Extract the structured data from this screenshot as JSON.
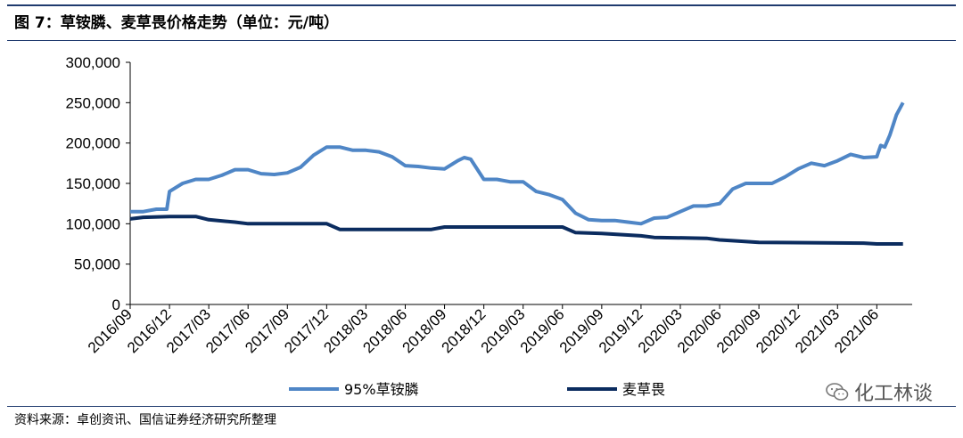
{
  "figure": {
    "title": "图 7：草铵膦、麦草畏价格走势（单位：元/吨）",
    "source": "资料来源：卓创资讯、国信证券经济研究所整理",
    "watermark": "化工林谈",
    "watermark_icon": "wechat-icon"
  },
  "chart_data": {
    "type": "line",
    "title": "",
    "xlabel": "",
    "ylabel": "",
    "ylim": [
      0,
      300000
    ],
    "yticks": [
      0,
      50000,
      100000,
      150000,
      200000,
      250000,
      300000
    ],
    "ytick_labels": [
      "0",
      "50,000",
      "100,000",
      "150,000",
      "200,000",
      "250,000",
      "300,000"
    ],
    "xticks": [
      "2016/09",
      "2016/12",
      "2017/03",
      "2017/06",
      "2017/09",
      "2017/12",
      "2018/03",
      "2018/06",
      "2018/09",
      "2018/12",
      "2019/03",
      "2019/06",
      "2019/09",
      "2019/12",
      "2020/03",
      "2020/06",
      "2020/09",
      "2020/12",
      "2021/03",
      "2021/06"
    ],
    "grid": false,
    "legend_position": "bottom",
    "series": [
      {
        "name": "95%草铵膦",
        "color": "#4f86c6",
        "points": [
          [
            "2016/09",
            115000
          ],
          [
            "2016/10",
            115000
          ],
          [
            "2016/11",
            118000
          ],
          [
            "2016/11.8",
            118000
          ],
          [
            "2016/12",
            140000
          ],
          [
            "2017/01",
            150000
          ],
          [
            "2017/02",
            155000
          ],
          [
            "2017/03",
            155000
          ],
          [
            "2017/04",
            160000
          ],
          [
            "2017/05",
            167000
          ],
          [
            "2017/06",
            167000
          ],
          [
            "2017/07",
            162000
          ],
          [
            "2017/08",
            161000
          ],
          [
            "2017/09",
            163000
          ],
          [
            "2017/10",
            170000
          ],
          [
            "2017/11",
            185000
          ],
          [
            "2017/12",
            195000
          ],
          [
            "2018/01",
            195000
          ],
          [
            "2018/02",
            191000
          ],
          [
            "2018/03",
            191000
          ],
          [
            "2018/04",
            189000
          ],
          [
            "2018/05",
            183000
          ],
          [
            "2018/06",
            172000
          ],
          [
            "2018/07",
            171000
          ],
          [
            "2018/08",
            169000
          ],
          [
            "2018/09",
            168000
          ],
          [
            "2018/10",
            178000
          ],
          [
            "2018/10.5",
            182000
          ],
          [
            "2018/11",
            180000
          ],
          [
            "2018/12",
            155000
          ],
          [
            "2019/01",
            155000
          ],
          [
            "2019/02",
            152000
          ],
          [
            "2019/03",
            152000
          ],
          [
            "2019/04",
            140000
          ],
          [
            "2019/05",
            136000
          ],
          [
            "2019/06",
            130000
          ],
          [
            "2019/07",
            113000
          ],
          [
            "2019/08",
            105000
          ],
          [
            "2019/09",
            104000
          ],
          [
            "2019/10",
            104000
          ],
          [
            "2019/11",
            102000
          ],
          [
            "2019/12",
            100000
          ],
          [
            "2020/01",
            107000
          ],
          [
            "2020/02",
            108000
          ],
          [
            "2020/03",
            115000
          ],
          [
            "2020/04",
            122000
          ],
          [
            "2020/05",
            122000
          ],
          [
            "2020/06",
            125000
          ],
          [
            "2020/07",
            143000
          ],
          [
            "2020/08",
            150000
          ],
          [
            "2020/09",
            150000
          ],
          [
            "2020/10",
            150000
          ],
          [
            "2020/11",
            158000
          ],
          [
            "2020/12",
            168000
          ],
          [
            "2021/01",
            175000
          ],
          [
            "2021/02",
            172000
          ],
          [
            "2021/03",
            178000
          ],
          [
            "2021/04",
            186000
          ],
          [
            "2021/05",
            182000
          ],
          [
            "2021/06",
            183000
          ],
          [
            "2021/06.3",
            197000
          ],
          [
            "2021/06.6",
            195000
          ],
          [
            "2021/07",
            210000
          ],
          [
            "2021/07.5",
            235000
          ],
          [
            "2021/08",
            250000
          ]
        ]
      },
      {
        "name": "麦草畏",
        "color": "#0b2c5f",
        "points": [
          [
            "2016/09",
            106000
          ],
          [
            "2016/10",
            108000
          ],
          [
            "2016/12",
            109000
          ],
          [
            "2017/02",
            109000
          ],
          [
            "2017/03",
            105000
          ],
          [
            "2017/05",
            102000
          ],
          [
            "2017/06",
            100000
          ],
          [
            "2017/12",
            100000
          ],
          [
            "2018/01",
            93000
          ],
          [
            "2018/08",
            93000
          ],
          [
            "2018/09",
            96000
          ],
          [
            "2019/06",
            96000
          ],
          [
            "2019/07",
            89000
          ],
          [
            "2019/09",
            88000
          ],
          [
            "2019/11",
            86000
          ],
          [
            "2019/12",
            85000
          ],
          [
            "2020/01",
            83000
          ],
          [
            "2020/05",
            82000
          ],
          [
            "2020/06",
            80000
          ],
          [
            "2020/07",
            79000
          ],
          [
            "2020/09",
            77000
          ],
          [
            "2021/05",
            76000
          ],
          [
            "2021/06",
            75000
          ],
          [
            "2021/08",
            75000
          ]
        ]
      }
    ]
  }
}
